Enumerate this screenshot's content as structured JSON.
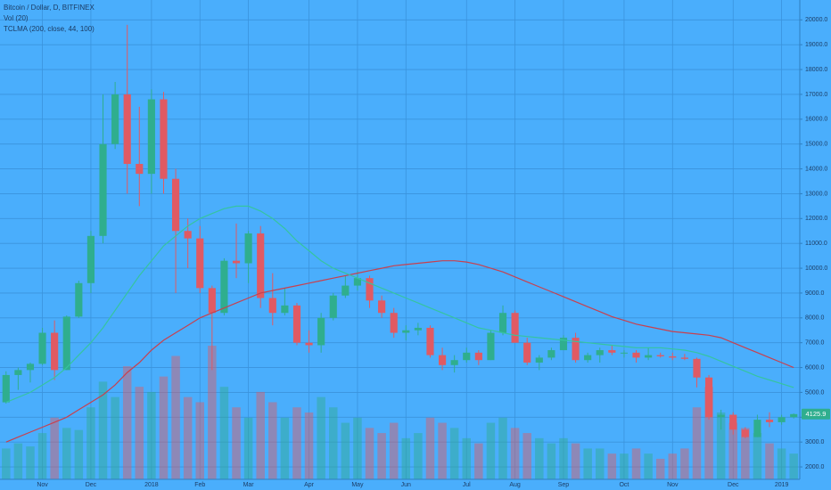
{
  "chart_data": {
    "type": "candlestick",
    "title": "Bitcoin / Dollar, D, BITFINEX",
    "volume_label": "Vol (20)",
    "indicator_label": "TCLMA (200, close, 44, 100)",
    "categories": [
      null,
      null,
      null,
      "Nov",
      null,
      null,
      null,
      "Dec",
      null,
      null,
      null,
      null,
      "2018",
      null,
      null,
      null,
      "Feb",
      null,
      null,
      null,
      "Mar",
      null,
      null,
      null,
      null,
      "Apr",
      null,
      null,
      null,
      "May",
      null,
      null,
      null,
      "Jun",
      null,
      null,
      null,
      null,
      "Jul",
      null,
      null,
      null,
      "Aug",
      null,
      null,
      null,
      "Sep",
      null,
      null,
      null,
      null,
      "Oct",
      null,
      null,
      null,
      "Nov",
      null,
      null,
      null,
      null,
      "Dec",
      null,
      null,
      null,
      "2019",
      null
    ],
    "open": [
      4600,
      5700,
      5900,
      6150,
      7400,
      5900,
      8050,
      9400,
      11300,
      15000,
      17000,
      14200,
      13800,
      16800,
      13600,
      11500,
      11200,
      9200,
      8200,
      10300,
      10200,
      11400,
      8800,
      8200,
      8500,
      7000,
      6900,
      8000,
      8900,
      9300,
      9600,
      8700,
      8200,
      7400,
      7500,
      7600,
      6500,
      6100,
      6300,
      6600,
      6300,
      7400,
      8200,
      7000,
      6200,
      6400,
      6700,
      7200,
      6300,
      6500,
      6700,
      6600,
      6600,
      6400,
      6500,
      6450,
      6400,
      6350,
      5600,
      4000,
      4100,
      3500,
      3200,
      3900,
      3800,
      4000
    ],
    "high": [
      5850,
      6000,
      6200,
      7600,
      7900,
      8100,
      9500,
      11500,
      17000,
      17500,
      19800,
      16500,
      17200,
      17100,
      14000,
      12000,
      11700,
      9300,
      10400,
      11800,
      11500,
      11700,
      9800,
      9200,
      8600,
      7500,
      8200,
      9000,
      9700,
      9900,
      9700,
      8900,
      8400,
      7700,
      7800,
      7700,
      6800,
      6500,
      6800,
      6700,
      7500,
      8500,
      8300,
      7200,
      6500,
      6800,
      7300,
      7400,
      6600,
      6800,
      6900,
      6700,
      6700,
      6800,
      6600,
      6600,
      6550,
      6400,
      5700,
      4300,
      4200,
      3600,
      4100,
      4200,
      4100,
      4150
    ],
    "low": [
      4550,
      5100,
      5400,
      6100,
      5500,
      5900,
      8000,
      9000,
      11000,
      14800,
      13000,
      12500,
      13000,
      13000,
      9000,
      10000,
      9000,
      5900,
      8100,
      9600,
      9400,
      8400,
      7700,
      8100,
      6900,
      6600,
      6600,
      7900,
      8800,
      9100,
      8400,
      8000,
      7200,
      7100,
      7300,
      6400,
      5900,
      5800,
      6200,
      6100,
      6300,
      7300,
      7000,
      6100,
      5900,
      6300,
      6700,
      6200,
      6200,
      6200,
      6500,
      6400,
      6200,
      6300,
      6400,
      6300,
      6300,
      5200,
      3900,
      3500,
      3300,
      3150,
      3200,
      3600,
      3700,
      3950
    ],
    "close": [
      5700,
      5900,
      6150,
      7400,
      5900,
      8050,
      9400,
      11300,
      15000,
      17000,
      14200,
      13800,
      16800,
      13600,
      11500,
      11200,
      9200,
      8200,
      10300,
      10200,
      11400,
      8800,
      8200,
      8500,
      7000,
      6900,
      8000,
      8900,
      9300,
      9600,
      8700,
      8200,
      7400,
      7500,
      7600,
      6500,
      6100,
      6300,
      6600,
      6300,
      7400,
      8200,
      7000,
      6200,
      6400,
      6700,
      7200,
      6300,
      6500,
      6700,
      6600,
      6600,
      6400,
      6500,
      6450,
      6400,
      6350,
      5600,
      4000,
      4100,
      3500,
      3200,
      3900,
      3800,
      4000,
      4125.9
    ],
    "volume": [
      30,
      35,
      32,
      45,
      60,
      50,
      48,
      70,
      95,
      80,
      110,
      90,
      85,
      100,
      120,
      80,
      75,
      130,
      90,
      70,
      60,
      85,
      75,
      60,
      70,
      65,
      80,
      70,
      55,
      60,
      50,
      45,
      55,
      40,
      45,
      60,
      55,
      50,
      40,
      35,
      55,
      60,
      50,
      45,
      40,
      35,
      40,
      35,
      30,
      30,
      25,
      25,
      30,
      25,
      20,
      25,
      30,
      70,
      90,
      65,
      55,
      50,
      45,
      35,
      30,
      25
    ],
    "up_color": "#2fae8e",
    "down_color": "#e05a63",
    "series": [
      {
        "color": "#c8404e",
        "values": [
          3000,
          3200,
          3400,
          3600,
          3800,
          4000,
          4300,
          4600,
          4900,
          5300,
          5800,
          6200,
          6700,
          7100,
          7400,
          7700,
          8000,
          8200,
          8400,
          8600,
          8800,
          9000,
          9100,
          9200,
          9300,
          9400,
          9500,
          9600,
          9700,
          9800,
          9900,
          10000,
          10100,
          10150,
          10200,
          10250,
          10300,
          10300,
          10250,
          10150,
          10000,
          9850,
          9650,
          9450,
          9250,
          9050,
          8850,
          8650,
          8450,
          8250,
          8050,
          7900,
          7750,
          7650,
          7550,
          7450,
          7400,
          7350,
          7300,
          7200,
          7000,
          6800,
          6600,
          6400,
          6200,
          6000
        ]
      },
      {
        "color": "#35c4a0",
        "values": [
          4600,
          4800,
          5000,
          5300,
          5600,
          6000,
          6500,
          7000,
          7600,
          8300,
          9000,
          9700,
          10300,
          10900,
          11300,
          11700,
          12000,
          12200,
          12400,
          12500,
          12500,
          12300,
          12000,
          11600,
          11100,
          10700,
          10300,
          10000,
          9800,
          9600,
          9400,
          9200,
          9000,
          8800,
          8600,
          8400,
          8200,
          8000,
          7800,
          7600,
          7500,
          7400,
          7300,
          7250,
          7200,
          7150,
          7100,
          7050,
          7000,
          6950,
          6900,
          6850,
          6800,
          6800,
          6800,
          6750,
          6700,
          6600,
          6450,
          6250,
          6050,
          5850,
          5650,
          5500,
          5350,
          5200
        ]
      }
    ],
    "ylim": [
      1500,
      20800
    ],
    "yticks": [
      {
        "value": 2000,
        "label": "2000.0"
      },
      {
        "value": 3000,
        "label": "3000.0"
      },
      {
        "value": 4000,
        "label": "4000.0"
      },
      {
        "value": 5000,
        "label": "5000.0"
      },
      {
        "value": 6000,
        "label": "6000.0"
      },
      {
        "value": 7000,
        "label": "7000.0"
      },
      {
        "value": 8000,
        "label": "8000.0"
      },
      {
        "value": 9000,
        "label": "9000.0"
      },
      {
        "value": 10000,
        "label": "10000.0"
      },
      {
        "value": 11000,
        "label": "11000.0"
      },
      {
        "value": 12000,
        "label": "12000.0"
      },
      {
        "value": 13000,
        "label": "13000.0"
      },
      {
        "value": 14000,
        "label": "14000.0"
      },
      {
        "value": 15000,
        "label": "15000.0"
      },
      {
        "value": 16000,
        "label": "16000.0"
      },
      {
        "value": 17000,
        "label": "17000.0"
      },
      {
        "value": 18000,
        "label": "18000.0"
      },
      {
        "value": 19000,
        "label": "19000.0"
      },
      {
        "value": 20000,
        "label": "20000.0"
      }
    ],
    "grid": true
  }
}
